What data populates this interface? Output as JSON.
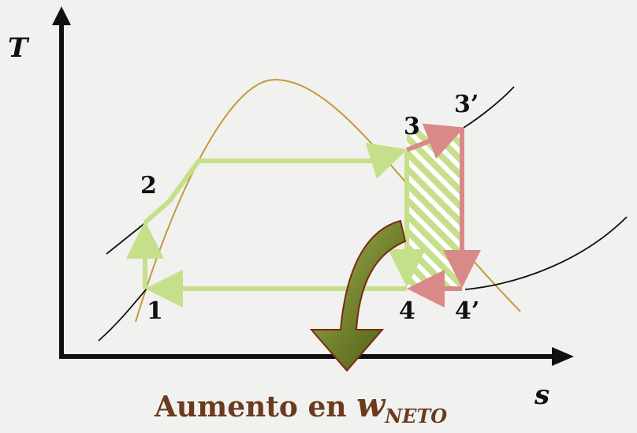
{
  "diagram": {
    "axes": {
      "y_label": "T",
      "x_label": "s"
    },
    "points": {
      "p1": "1",
      "p2": "2",
      "p3": "3",
      "p3p": "3’",
      "p4": "4",
      "p4p": "4’"
    },
    "caption": {
      "main": "Aumento en ",
      "symbol": "w",
      "subscript": "NETO"
    },
    "colors": {
      "cycle": "#c6df8a",
      "added": "#d98a88",
      "dome": "#c49a3a",
      "arrow_dark": "#5a6b1f",
      "arrow_light": "#9aad4a",
      "caption": "#6b3a1f",
      "axis": "#111111"
    }
  }
}
